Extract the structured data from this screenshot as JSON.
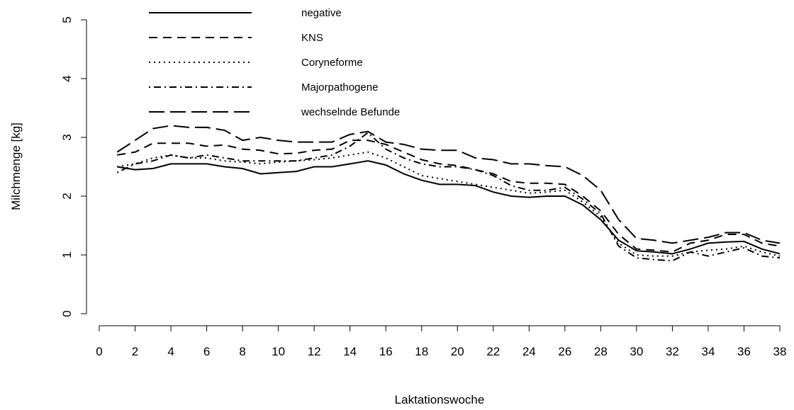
{
  "chart_data": {
    "type": "line",
    "x_label": "Laktationswoche",
    "y_label": "Milchmenge [kg]",
    "x": [
      1,
      2,
      3,
      4,
      5,
      6,
      7,
      8,
      9,
      10,
      11,
      12,
      13,
      14,
      15,
      16,
      17,
      18,
      19,
      20,
      21,
      22,
      23,
      24,
      25,
      26,
      27,
      28,
      29,
      30,
      31,
      32,
      33,
      34,
      35,
      36,
      37,
      38
    ],
    "xlim": [
      0,
      38
    ],
    "xticks": [
      0,
      2,
      4,
      6,
      8,
      10,
      12,
      14,
      16,
      18,
      20,
      22,
      24,
      26,
      28,
      30,
      32,
      34,
      36,
      38
    ],
    "ylim": [
      0,
      5
    ],
    "yticks": [
      0,
      1,
      2,
      3,
      4,
      5
    ],
    "legend": "top-left",
    "series": [
      {
        "name": "negative",
        "color": "#000000",
        "linestyle": "solid",
        "values": [
          2.5,
          2.45,
          2.47,
          2.55,
          2.55,
          2.55,
          2.5,
          2.47,
          2.38,
          2.4,
          2.42,
          2.5,
          2.5,
          2.55,
          2.6,
          2.53,
          2.38,
          2.27,
          2.2,
          2.2,
          2.18,
          2.07,
          2.0,
          1.98,
          2.0,
          2.0,
          1.85,
          1.6,
          1.25,
          1.07,
          1.05,
          1.02,
          1.1,
          1.2,
          1.22,
          1.23,
          1.1,
          1.02
        ]
      },
      {
        "name": "KNS",
        "color": "#000000",
        "linestyle": "dashed",
        "values": [
          2.7,
          2.75,
          2.9,
          2.9,
          2.9,
          2.85,
          2.87,
          2.8,
          2.78,
          2.72,
          2.73,
          2.78,
          2.8,
          2.95,
          2.95,
          2.88,
          2.75,
          2.62,
          2.55,
          2.52,
          2.45,
          2.38,
          2.25,
          2.22,
          2.22,
          2.2,
          2.0,
          1.75,
          1.35,
          1.1,
          1.08,
          1.05,
          1.2,
          1.25,
          1.35,
          1.35,
          1.2,
          1.15
        ]
      },
      {
        "name": "Coryneforme",
        "color": "#000000",
        "linestyle": "dotted",
        "values": [
          2.5,
          2.55,
          2.65,
          2.7,
          2.65,
          2.65,
          2.6,
          2.58,
          2.55,
          2.58,
          2.6,
          2.62,
          2.65,
          2.7,
          2.75,
          2.65,
          2.5,
          2.35,
          2.3,
          2.25,
          2.2,
          2.15,
          2.1,
          2.05,
          2.07,
          2.1,
          1.9,
          1.65,
          1.2,
          1.0,
          0.98,
          0.98,
          1.05,
          1.08,
          1.1,
          1.15,
          1.05,
          0.98
        ]
      },
      {
        "name": "Majorpathogene",
        "color": "#000000",
        "linestyle": "dotdash",
        "values": [
          2.4,
          2.55,
          2.6,
          2.7,
          2.65,
          2.7,
          2.65,
          2.6,
          2.6,
          2.6,
          2.6,
          2.65,
          2.7,
          2.85,
          3.08,
          2.8,
          2.65,
          2.55,
          2.5,
          2.5,
          2.45,
          2.35,
          2.18,
          2.1,
          2.1,
          2.15,
          1.95,
          1.7,
          1.15,
          0.95,
          0.92,
          0.9,
          1.05,
          0.98,
          1.05,
          1.12,
          0.98,
          0.95
        ]
      },
      {
        "name": "wechselnde Befunde",
        "color": "#000000",
        "linestyle": "longdash",
        "values": [
          2.75,
          2.95,
          3.15,
          3.2,
          3.17,
          3.17,
          3.12,
          2.95,
          3.0,
          2.95,
          2.92,
          2.92,
          2.92,
          3.05,
          3.1,
          2.92,
          2.88,
          2.8,
          2.78,
          2.78,
          2.65,
          2.62,
          2.55,
          2.55,
          2.52,
          2.5,
          2.35,
          2.1,
          1.6,
          1.28,
          1.25,
          1.2,
          1.25,
          1.3,
          1.38,
          1.38,
          1.25,
          1.2
        ]
      }
    ]
  }
}
